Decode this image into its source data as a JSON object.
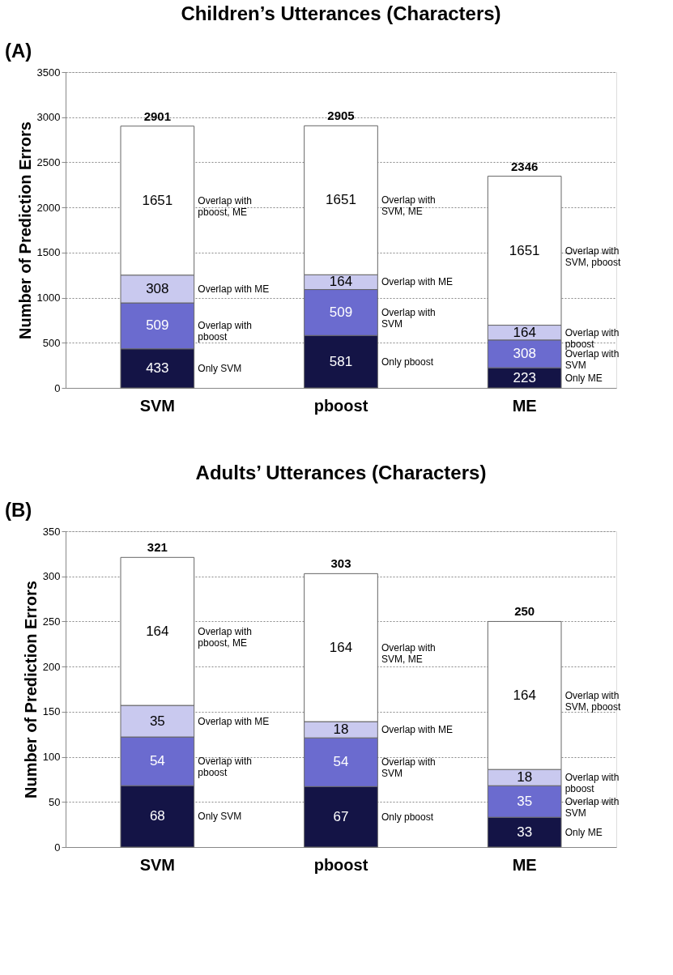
{
  "chart_data": [
    {
      "type": "bar",
      "title": "Children’s Utterances (Characters)",
      "ylabel": "Number of Prediction Errors",
      "categories": [
        "SVM",
        "pboost",
        "ME"
      ],
      "stacked": true,
      "series": [
        {
          "color": "#141446",
          "values": [
            433,
            581,
            223
          ]
        },
        {
          "color": "#6b6bcf",
          "values": [
            509,
            509,
            308
          ]
        },
        {
          "color": "#c9c9ef",
          "values": [
            308,
            164,
            164
          ]
        },
        {
          "color": "#ffffff",
          "values": [
            1651,
            1651,
            1651
          ]
        }
      ],
      "ylim": [
        0,
        3500
      ],
      "yticks": [
        0,
        500,
        1000,
        1500,
        2000,
        2500,
        3000,
        3500
      ],
      "grid": "y",
      "data_labels": true,
      "totals": [
        "2901",
        "2905",
        "2346"
      ],
      "annotations": [
        "(A)",
        "Only SVM",
        "Overlap with\npboost",
        "Overlap with ME",
        "Overlap with\npboost, ME",
        "Only pboost",
        "Overlap with\nSVM",
        "Overlap with ME",
        "Overlap with\nSVM, ME",
        "Only ME",
        "Overlap with\nSVM",
        "Overlap with\npboost",
        "Overlap with\nSVM, pboost"
      ]
    },
    {
      "type": "bar",
      "title": "Adults’ Utterances (Characters)",
      "ylabel": "Number of Prediction Errors",
      "categories": [
        "SVM",
        "pboost",
        "ME"
      ],
      "stacked": true,
      "series": [
        {
          "color": "#141446",
          "values": [
            68,
            67,
            33
          ]
        },
        {
          "color": "#6b6bcf",
          "values": [
            54,
            54,
            35
          ]
        },
        {
          "color": "#c9c9ef",
          "values": [
            35,
            18,
            18
          ]
        },
        {
          "color": "#ffffff",
          "values": [
            164,
            164,
            164
          ]
        }
      ],
      "ylim": [
        0,
        350
      ],
      "yticks": [
        0,
        50,
        100,
        150,
        200,
        250,
        300,
        350
      ],
      "grid": "y",
      "data_labels": true,
      "totals": [
        "321",
        "303",
        "250"
      ],
      "annotations": [
        "(B)",
        "Only SVM",
        "Overlap with\npboost",
        "Overlap with ME",
        "Overlap with\npboost, ME",
        "Only pboost",
        "Overlap with\nSVM",
        "Overlap with ME",
        "Overlap with\nSVM, ME",
        "Only ME",
        "Overlap with\nSVM",
        "Overlap with\npboost",
        "Overlap with\nSVM, pboost"
      ]
    }
  ]
}
